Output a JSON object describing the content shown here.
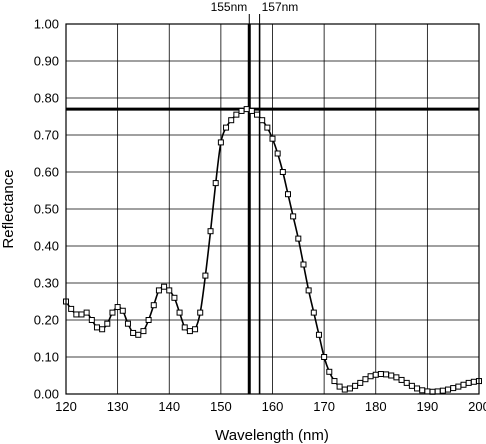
{
  "chart_data": {
    "type": "line",
    "xlabel": "Wavelength (nm)",
    "ylabel": "Reflectance",
    "xlim": [
      120,
      200
    ],
    "ylim": [
      0,
      1.0
    ],
    "x_ticks": [
      120,
      130,
      140,
      150,
      160,
      170,
      180,
      190,
      200
    ],
    "x_tick_labels": [
      "120",
      "130",
      "140",
      "150",
      "160",
      "170",
      "180",
      "190",
      "200"
    ],
    "y_ticks": [
      0,
      0.1,
      0.2,
      0.3,
      0.4,
      0.5,
      0.6,
      0.7,
      0.8,
      0.9,
      1.0
    ],
    "y_tick_labels": [
      "0.00",
      "0.10",
      "0.20",
      "0.30",
      "0.40",
      "0.50",
      "0.60",
      "0.70",
      "0.80",
      "0.90",
      "1.00"
    ],
    "grid": true,
    "marker": "open-square",
    "line_color": "#000000",
    "series": [
      {
        "x": [
          120,
          121,
          122,
          123,
          124,
          125,
          126,
          127,
          128,
          129,
          130,
          131,
          132,
          133,
          134,
          135,
          136,
          137,
          138,
          139,
          140,
          141,
          142,
          143,
          144,
          145,
          146,
          147,
          148,
          149,
          150,
          151,
          152,
          153,
          154,
          155,
          156,
          157,
          158,
          159,
          160,
          161,
          162,
          163,
          164,
          165,
          166,
          167,
          168,
          169,
          170,
          171,
          172,
          173,
          174,
          175,
          176,
          177,
          178,
          179,
          180,
          181,
          182,
          183,
          184,
          185,
          186,
          187,
          188,
          189,
          190,
          191,
          192,
          193,
          194,
          195,
          196,
          197,
          198,
          199,
          200
        ],
        "values": [
          0.25,
          0.23,
          0.215,
          0.215,
          0.22,
          0.2,
          0.18,
          0.175,
          0.19,
          0.22,
          0.235,
          0.225,
          0.19,
          0.165,
          0.16,
          0.17,
          0.2,
          0.24,
          0.28,
          0.29,
          0.28,
          0.26,
          0.22,
          0.18,
          0.17,
          0.175,
          0.22,
          0.32,
          0.44,
          0.57,
          0.68,
          0.72,
          0.74,
          0.755,
          0.765,
          0.77,
          0.765,
          0.755,
          0.74,
          0.72,
          0.69,
          0.65,
          0.6,
          0.54,
          0.48,
          0.42,
          0.35,
          0.28,
          0.22,
          0.16,
          0.1,
          0.06,
          0.035,
          0.02,
          0.012,
          0.015,
          0.022,
          0.03,
          0.04,
          0.048,
          0.052,
          0.054,
          0.053,
          0.05,
          0.045,
          0.038,
          0.03,
          0.022,
          0.015,
          0.01,
          0.007,
          0.006,
          0.007,
          0.009,
          0.012,
          0.016,
          0.02,
          0.025,
          0.03,
          0.033,
          0.035
        ]
      }
    ],
    "reference_lines": {
      "vertical": [
        {
          "x": 155.5,
          "label": "155nm",
          "weight": "bold"
        },
        {
          "x": 157.5,
          "label": "157nm",
          "weight": "normal"
        }
      ],
      "horizontal": [
        {
          "y": 0.77,
          "weight": "bold"
        }
      ]
    }
  }
}
